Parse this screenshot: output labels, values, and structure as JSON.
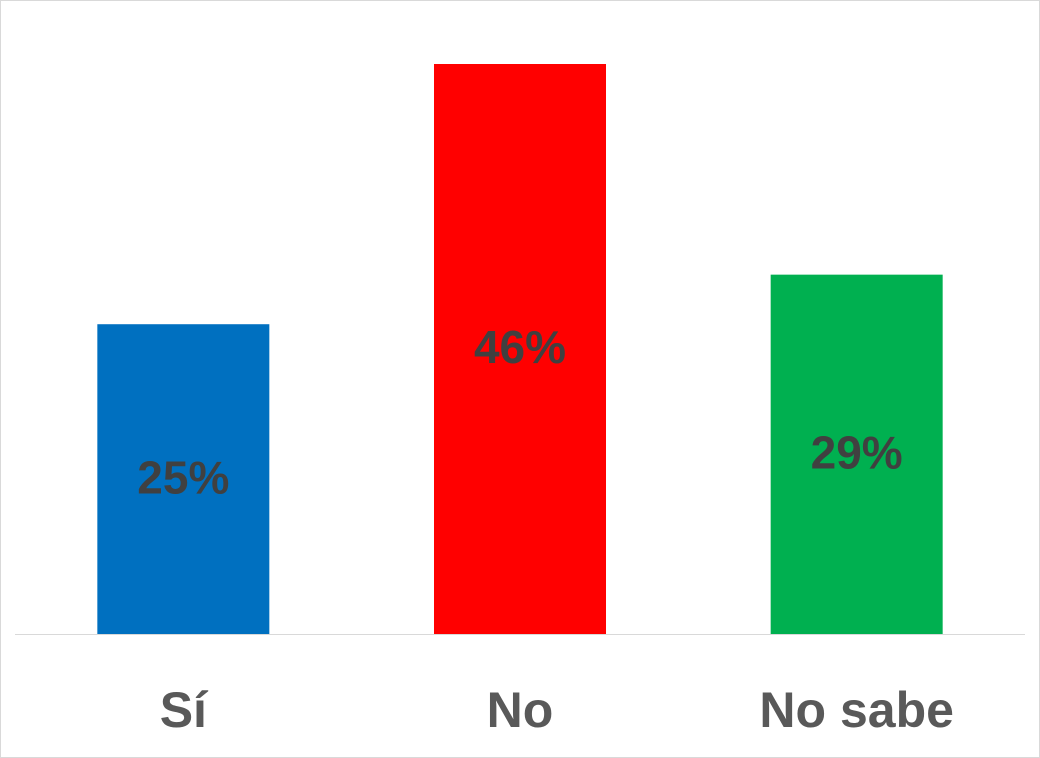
{
  "chart_data": {
    "type": "bar",
    "categories": [
      "Sí",
      "No",
      "No sabe"
    ],
    "values": [
      25,
      46,
      29
    ],
    "value_labels": [
      "25%",
      "46%",
      "29%"
    ],
    "colors": [
      "#0070c0",
      "#ff0000",
      "#00b050"
    ]
  }
}
